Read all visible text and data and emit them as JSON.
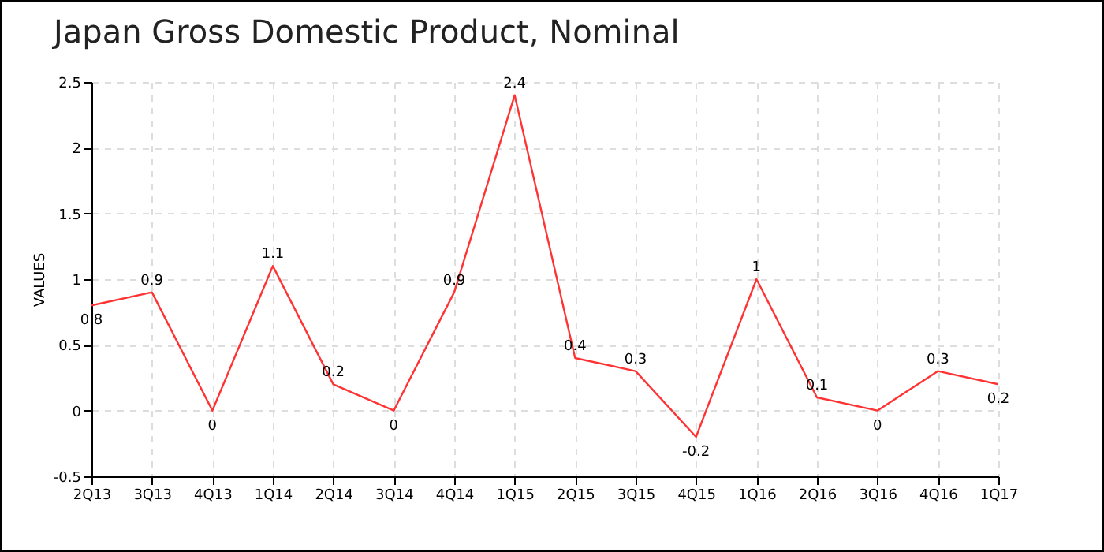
{
  "chart_data": {
    "type": "line",
    "title": "Japan Gross Domestic Product, Nominal",
    "ylabel": "VALUES",
    "categories": [
      "2Q13",
      "3Q13",
      "4Q13",
      "1Q14",
      "2Q14",
      "3Q14",
      "4Q14",
      "1Q15",
      "2Q15",
      "3Q15",
      "4Q15",
      "1Q16",
      "2Q16",
      "3Q16",
      "4Q16",
      "1Q17"
    ],
    "series": [
      {
        "color": "#ff3333",
        "values": [
          0.8,
          0.9,
          0,
          1.1,
          0.2,
          0,
          0.9,
          2.4,
          0.4,
          0.3,
          -0.2,
          1,
          0.1,
          0,
          0.3,
          0.2
        ]
      }
    ],
    "ylim": [
      -0.5,
      2.5
    ],
    "yticks": [
      -0.5,
      0,
      0.5,
      1,
      1.5,
      2,
      2.5
    ],
    "grid": true,
    "data_labels": true,
    "marker": "none",
    "line_style": "solid"
  }
}
